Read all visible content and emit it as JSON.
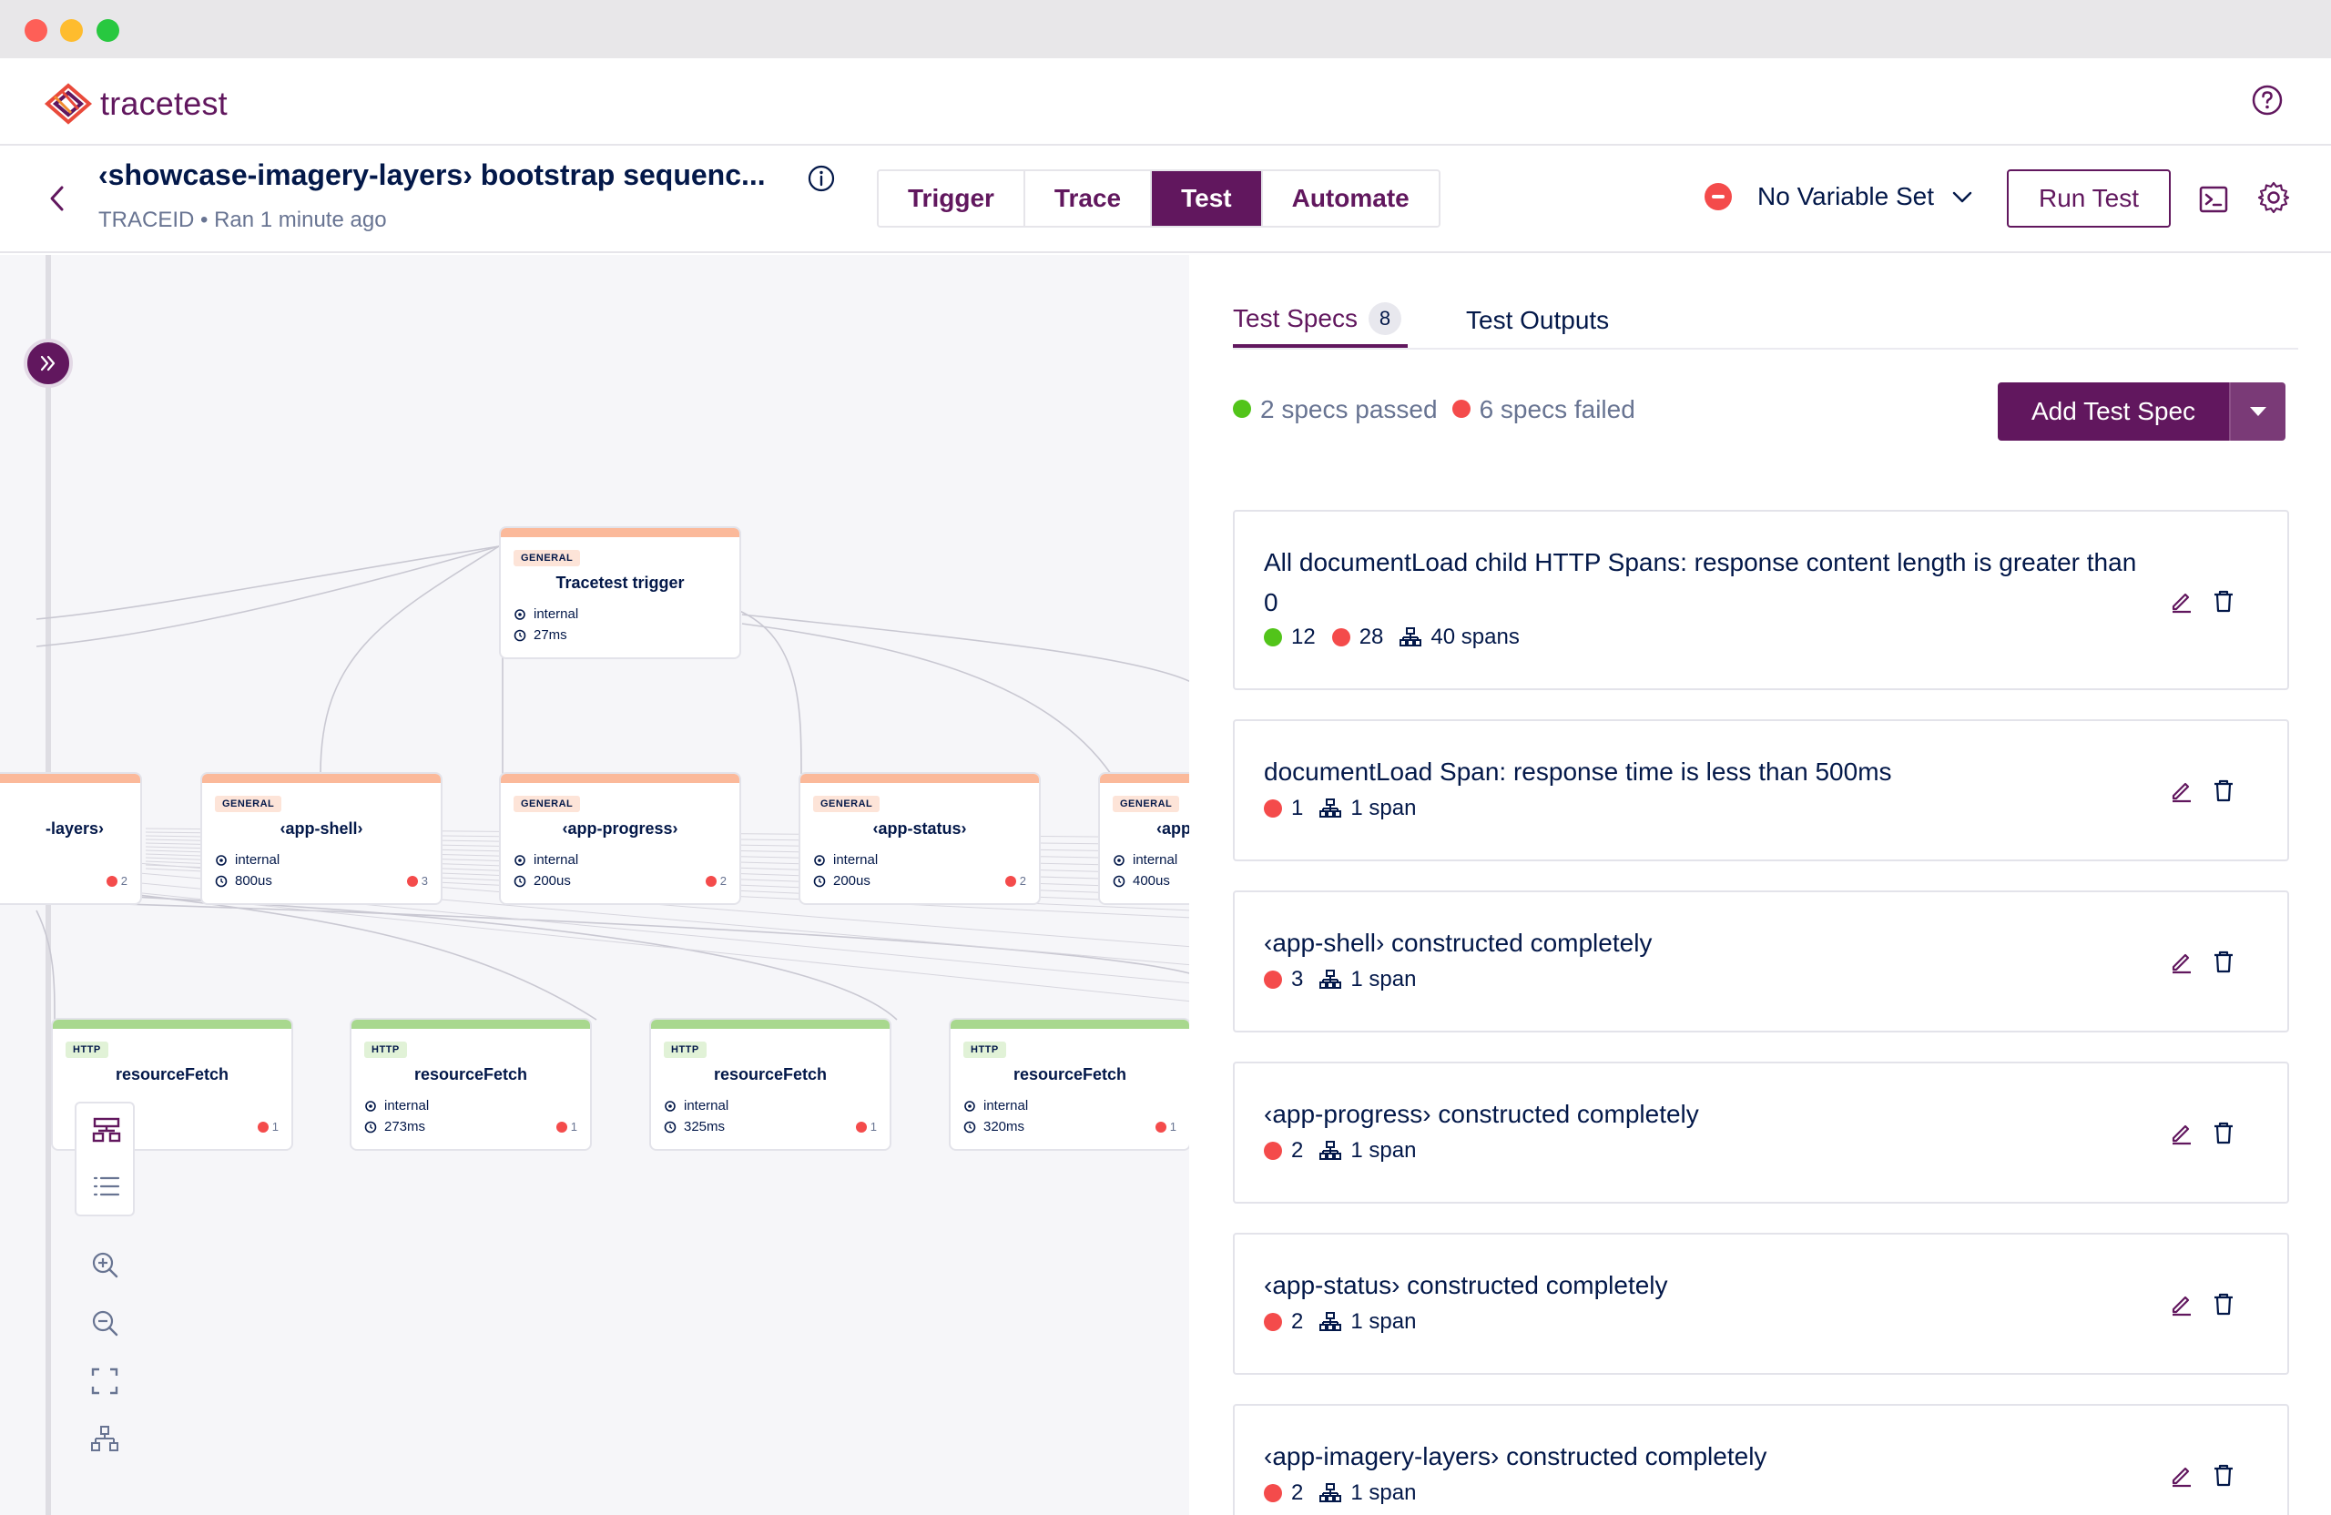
{
  "app": {
    "name": "tracetest"
  },
  "test": {
    "title": "‹showcase-imagery-layers› bootstrap sequenc...",
    "subtitle": "TRACEID • Ran 1 minute ago"
  },
  "mode_tabs": [
    {
      "label": "Trigger",
      "active": false
    },
    {
      "label": "Trace",
      "active": false
    },
    {
      "label": "Test",
      "active": true
    },
    {
      "label": "Automate",
      "active": false
    }
  ],
  "variable_set": {
    "label": "No Variable Set"
  },
  "run_test_label": "Run Test",
  "graph": {
    "root": {
      "badge": "GENERAL",
      "title": "Tracetest trigger",
      "kind": "internal",
      "duration": "27ms"
    },
    "level1": [
      {
        "badge": "",
        "title": "-layers›",
        "kind": "",
        "duration": "",
        "fails": "2"
      },
      {
        "badge": "GENERAL",
        "title": "‹app-shell›",
        "kind": "internal",
        "duration": "800us",
        "fails": "3"
      },
      {
        "badge": "GENERAL",
        "title": "‹app-progress›",
        "kind": "internal",
        "duration": "200us",
        "fails": "2"
      },
      {
        "badge": "GENERAL",
        "title": "‹app-status›",
        "kind": "internal",
        "duration": "200us",
        "fails": "2"
      },
      {
        "badge": "GENERAL",
        "title": "‹app",
        "kind": "internal",
        "duration": "400us",
        "fails": ""
      }
    ],
    "level2": [
      {
        "badge": "HTTP",
        "title": "resourceFetch",
        "kind": "",
        "duration": "",
        "fails": "1"
      },
      {
        "badge": "HTTP",
        "title": "resourceFetch",
        "kind": "internal",
        "duration": "273ms",
        "fails": "1"
      },
      {
        "badge": "HTTP",
        "title": "resourceFetch",
        "kind": "internal",
        "duration": "325ms",
        "fails": "1"
      },
      {
        "badge": "HTTP",
        "title": "resourceFetch",
        "kind": "internal",
        "duration": "320ms",
        "fails": "1"
      }
    ]
  },
  "panel": {
    "tabs": {
      "specs_label": "Test Specs",
      "specs_count": "8",
      "outputs_label": "Test Outputs"
    },
    "summary": {
      "passed": "2 specs passed",
      "failed": "6 specs failed"
    },
    "add_spec_label": "Add Test Spec",
    "specs": [
      {
        "title": "All documentLoad child HTTP Spans: response content length is greater than 0",
        "passed": "12",
        "failed": "28",
        "spans": "40 spans"
      },
      {
        "title": "documentLoad Span: response time is less than 500ms",
        "passed": "",
        "failed": "1",
        "spans": "1 span"
      },
      {
        "title": "‹app-shell› constructed completely",
        "passed": "",
        "failed": "3",
        "spans": "1 span"
      },
      {
        "title": "‹app-progress› constructed completely",
        "passed": "",
        "failed": "2",
        "spans": "1 span"
      },
      {
        "title": "‹app-status› constructed completely",
        "passed": "",
        "failed": "2",
        "spans": "1 span"
      },
      {
        "title": "‹app-imagery-layers› constructed completely",
        "passed": "",
        "failed": "2",
        "spans": "1 span"
      }
    ]
  },
  "colors": {
    "brand": "#61175e",
    "pass": "#52c41a",
    "fail": "#f44b4b",
    "general": "#fbb99a",
    "http": "#a8d88e"
  },
  "icons": [
    "help-icon",
    "back-icon",
    "info-icon",
    "chevron-down-icon",
    "terminal-icon",
    "gear-icon",
    "expand-icon",
    "tree-view-icon",
    "list-view-icon",
    "zoom-in-icon",
    "zoom-out-icon",
    "fit-view-icon",
    "layout-icon",
    "spans-icon",
    "edit-icon",
    "delete-icon"
  ]
}
